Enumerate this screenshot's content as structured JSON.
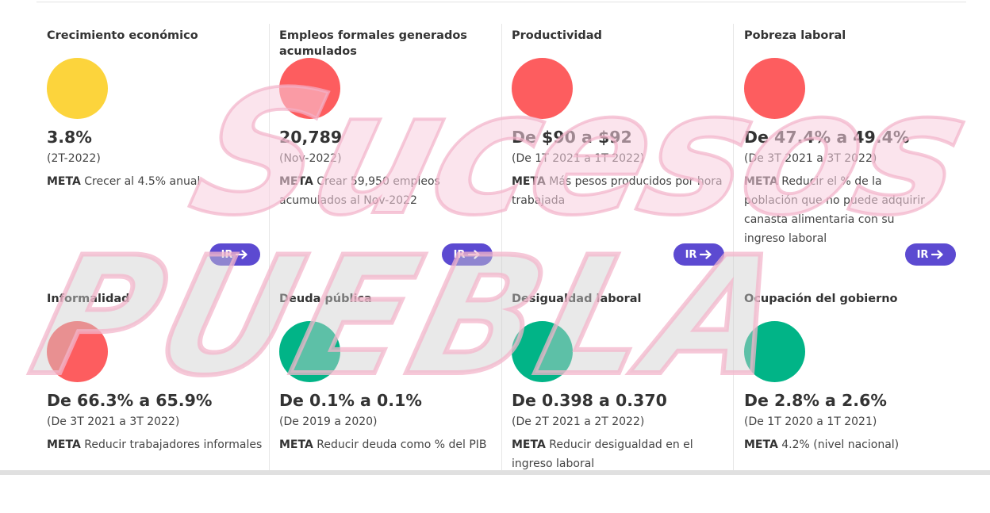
{
  "colors": {
    "yellow": "#fcd43c",
    "red": "#fd5d5f",
    "green": "#01b487",
    "button": "#5c4ad1"
  },
  "row1": [
    {
      "title": "Crecimiento económico",
      "status": "yellow",
      "value": "3.8%",
      "period": "(2T-2022)",
      "meta_label": "META",
      "meta_text": "Crecer al 4.5% anual",
      "button": "IR",
      "arrow_icon": "arrow-right-icon"
    },
    {
      "title": "Empleos formales generados acumulados",
      "status": "red",
      "value": "20,789",
      "period": "(Nov-2022)",
      "meta_label": "META",
      "meta_text": "Crear 59,950 empleos acumulados al Nov-2022",
      "button": "IR",
      "arrow_icon": "arrow-right-icon"
    },
    {
      "title": "Productividad",
      "status": "red",
      "value": "De $90 a $92",
      "period": "(De 1T 2021 a 1T 2022)",
      "meta_label": "META",
      "meta_text": "Más pesos producidos por hora trabajada",
      "button": "IR",
      "arrow_icon": "arrow-right-icon"
    },
    {
      "title": "Pobreza laboral",
      "status": "red",
      "value": "De 47.4% a 49.4%",
      "period": "(De 3T 2021 a 3T 2022)",
      "meta_label": "META",
      "meta_text": "Reducir el % de la población que no puede adquirir canasta alimentaria con su ingreso laboral",
      "button": "IR",
      "arrow_icon": "arrow-right-icon"
    }
  ],
  "row2": [
    {
      "title": "Informalidad",
      "status": "red",
      "value": "De 66.3% a 65.9%",
      "period": "(De 3T 2021 a 3T 2022)",
      "meta_label": "META",
      "meta_text": "Reducir trabajadores informales"
    },
    {
      "title": "Deuda pública",
      "status": "green",
      "value": "De 0.1% a 0.1%",
      "period": "(De 2019 a 2020)",
      "meta_label": "META",
      "meta_text": "Reducir deuda como % del PIB"
    },
    {
      "title": "Desigualdad laboral",
      "status": "green",
      "value": "De 0.398 a 0.370",
      "period": "(De 2T 2021 a 2T 2022)",
      "meta_label": "META",
      "meta_text": "Reducir desigualdad en el ingreso laboral"
    },
    {
      "title": "Ocupación del gobierno",
      "status": "green",
      "value": "De 2.8% a 2.6%",
      "period": "(De 1T 2020 a 1T 2021)",
      "meta_label": "META",
      "meta_text": "4.2% (nivel nacional)"
    }
  ],
  "watermark": {
    "line1": "Sucesos",
    "line2": "PUEBLA"
  }
}
